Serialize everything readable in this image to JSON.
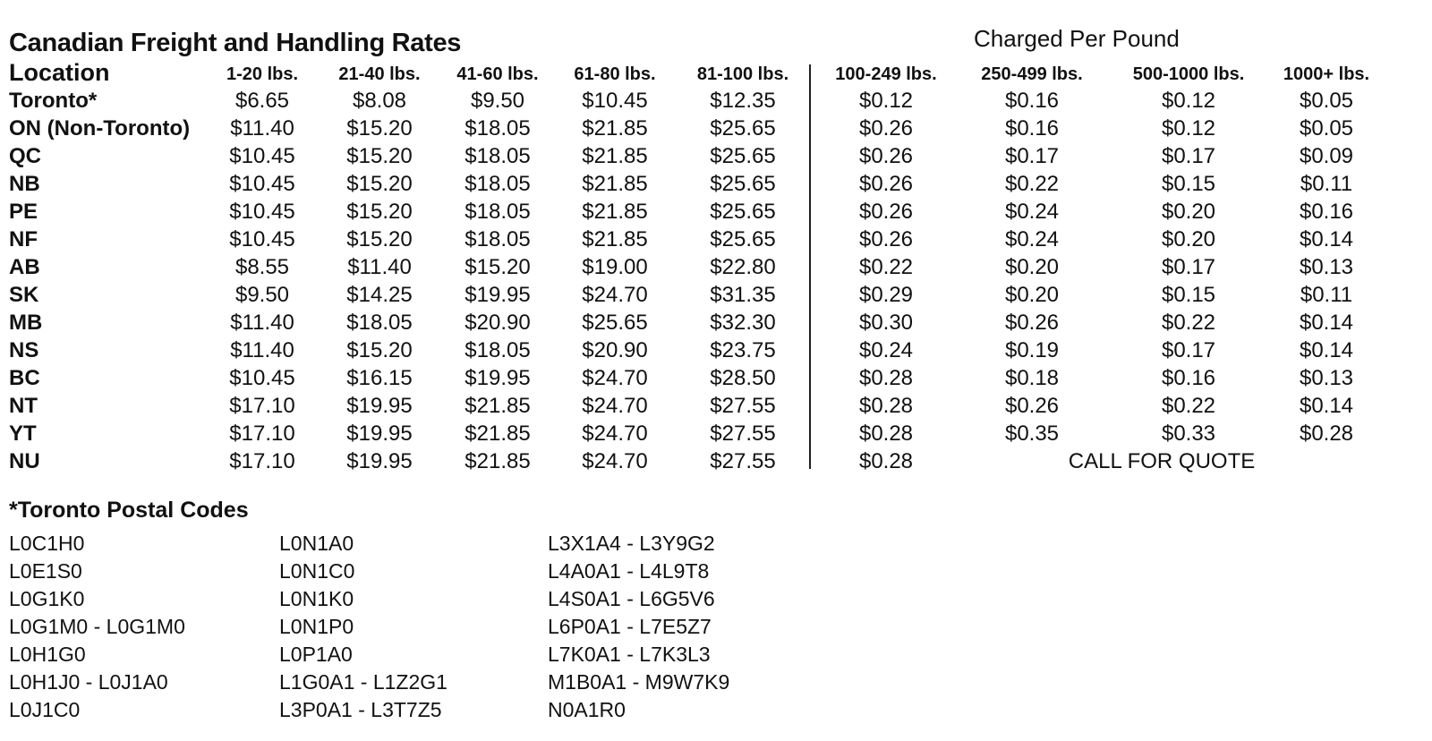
{
  "title": "Canadian Freight and Handling Rates",
  "subtitle": "Charged Per Pound",
  "columns": [
    "Location",
    "1-20 lbs.",
    "21-40 lbs.",
    "41-60 lbs.",
    "61-80 lbs.",
    "81-100 lbs.",
    "100-249 lbs.",
    "250-499 lbs.",
    "500-1000 lbs.",
    "1000+ lbs."
  ],
  "rows": [
    {
      "location": "Toronto*",
      "values": [
        "$6.65",
        "$8.08",
        "$9.50",
        "$10.45",
        "$12.35",
        "$0.12",
        "$0.16",
        "$0.12",
        "$0.05"
      ]
    },
    {
      "location": "ON (Non-Toronto)",
      "values": [
        "$11.40",
        "$15.20",
        "$18.05",
        "$21.85",
        "$25.65",
        "$0.26",
        "$0.16",
        "$0.12",
        "$0.05"
      ]
    },
    {
      "location": "QC",
      "values": [
        "$10.45",
        "$15.20",
        "$18.05",
        "$21.85",
        "$25.65",
        "$0.26",
        "$0.17",
        "$0.17",
        "$0.09"
      ]
    },
    {
      "location": "NB",
      "values": [
        "$10.45",
        "$15.20",
        "$18.05",
        "$21.85",
        "$25.65",
        "$0.26",
        "$0.22",
        "$0.15",
        "$0.11"
      ]
    },
    {
      "location": "PE",
      "values": [
        "$10.45",
        "$15.20",
        "$18.05",
        "$21.85",
        "$25.65",
        "$0.26",
        "$0.24",
        "$0.20",
        "$0.16"
      ]
    },
    {
      "location": "NF",
      "values": [
        "$10.45",
        "$15.20",
        "$18.05",
        "$21.85",
        "$25.65",
        "$0.26",
        "$0.24",
        "$0.20",
        "$0.14"
      ]
    },
    {
      "location": "AB",
      "values": [
        "$8.55",
        "$11.40",
        "$15.20",
        "$19.00",
        "$22.80",
        "$0.22",
        "$0.20",
        "$0.17",
        "$0.13"
      ]
    },
    {
      "location": "SK",
      "values": [
        "$9.50",
        "$14.25",
        "$19.95",
        "$24.70",
        "$31.35",
        "$0.29",
        "$0.20",
        "$0.15",
        "$0.11"
      ]
    },
    {
      "location": "MB",
      "values": [
        "$11.40",
        "$18.05",
        "$20.90",
        "$25.65",
        "$32.30",
        "$0.30",
        "$0.26",
        "$0.22",
        "$0.14"
      ]
    },
    {
      "location": "NS",
      "values": [
        "$11.40",
        "$15.20",
        "$18.05",
        "$20.90",
        "$23.75",
        "$0.24",
        "$0.19",
        "$0.17",
        "$0.14"
      ]
    },
    {
      "location": "BC",
      "values": [
        "$10.45",
        "$16.15",
        "$19.95",
        "$24.70",
        "$28.50",
        "$0.28",
        "$0.18",
        "$0.16",
        "$0.13"
      ]
    },
    {
      "location": "NT",
      "values": [
        "$17.10",
        "$19.95",
        "$21.85",
        "$24.70",
        "$27.55",
        "$0.28",
        "$0.26",
        "$0.22",
        "$0.14"
      ]
    },
    {
      "location": "YT",
      "values": [
        "$17.10",
        "$19.95",
        "$21.85",
        "$24.70",
        "$27.55",
        "$0.28",
        "$0.35",
        "$0.33",
        "$0.28"
      ]
    },
    {
      "location": "NU",
      "values": [
        "$17.10",
        "$19.95",
        "$21.85",
        "$24.70",
        "$27.55",
        "$0.28"
      ],
      "note": "CALL FOR QUOTE"
    }
  ],
  "postal_codes": {
    "title": "*Toronto Postal Codes",
    "columns": [
      [
        "L0C1H0",
        "L0E1S0",
        "L0G1K0",
        "L0G1M0 - L0G1M0",
        "L0H1G0",
        "L0H1J0 - L0J1A0",
        "L0J1C0"
      ],
      [
        "L0N1A0",
        "L0N1C0",
        "L0N1K0",
        "L0N1P0",
        "L0P1A0",
        "L1G0A1 - L1Z2G1",
        "L3P0A1 - L3T7Z5"
      ],
      [
        "L3X1A4 - L3Y9G2",
        "L4A0A1 - L4L9T8",
        "L4S0A1 - L6G5V6",
        "L6P0A1 - L7E5Z7",
        "L7K0A1 - L7K3L3",
        "M1B0A1 - M9W7K9",
        "N0A1R0"
      ]
    ]
  }
}
